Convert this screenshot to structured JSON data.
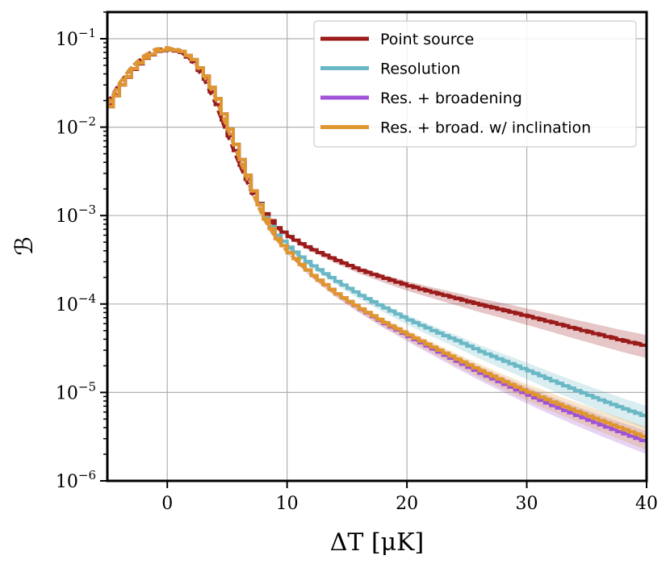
{
  "chart_data": {
    "type": "line",
    "xlabel": "ΔT [μK]",
    "ylabel": "ℬ",
    "yscale": "log",
    "xlim": [
      -5,
      40
    ],
    "ylim": [
      1e-06,
      0.2
    ],
    "grid": true,
    "legend_position": "top-right",
    "x_ticks": [
      0,
      10,
      20,
      30,
      40
    ],
    "x_tick_labels": [
      "0",
      "10",
      "20",
      "30",
      "40"
    ],
    "y_ticks": [
      1e-06,
      1e-05,
      0.0001,
      0.001,
      0.01,
      0.1
    ],
    "y_tick_labels": [
      "10−6",
      "10−5",
      "10−4",
      "10−3",
      "10−2",
      "10−1"
    ],
    "series": [
      {
        "name": "Point source",
        "color": "#9b1b1b",
        "x": [
          -5,
          -4,
          -3,
          -2,
          -1,
          0,
          1,
          2,
          3,
          4,
          5,
          6,
          7,
          8,
          9,
          10,
          11,
          12,
          14,
          16,
          18,
          20,
          22,
          24,
          26,
          28,
          30,
          32,
          34,
          36,
          38,
          40
        ],
        "y": [
          0.018,
          0.03,
          0.045,
          0.06,
          0.072,
          0.075,
          0.07,
          0.055,
          0.035,
          0.018,
          0.008,
          0.0037,
          0.0018,
          0.00105,
          0.00073,
          0.00058,
          0.00048,
          0.00041,
          0.00031,
          0.00024,
          0.000195,
          0.00016,
          0.000135,
          0.000115,
          9.75e-05,
          8.4e-05,
          7.2e-05,
          6.15e-05,
          5.2e-05,
          4.45e-05,
          3.8e-05,
          3.3e-05
        ]
      },
      {
        "name": "Resolution",
        "color": "#6ab8c6",
        "x": [
          -5,
          -4,
          -3,
          -2,
          -1,
          0,
          1,
          2,
          3,
          4,
          5,
          6,
          7,
          8,
          9,
          10,
          11,
          12,
          14,
          16,
          18,
          20,
          22,
          24,
          26,
          28,
          30,
          32,
          34,
          36,
          38,
          40
        ],
        "y": [
          0.017,
          0.03,
          0.046,
          0.061,
          0.073,
          0.076,
          0.072,
          0.058,
          0.038,
          0.021,
          0.0095,
          0.0043,
          0.0019,
          0.00095,
          0.0006,
          0.00044,
          0.00034,
          0.00027,
          0.00018,
          0.000125,
          9e-05,
          6.6e-05,
          5e-05,
          3.85e-05,
          2.9e-05,
          2.25e-05,
          1.75e-05,
          1.35e-05,
          1.05e-05,
          8.2e-06,
          6.5e-06,
          5.2e-06
        ]
      },
      {
        "name": "Res. + broadening",
        "color": "#9f52d8",
        "x": [
          -5,
          -4,
          -3,
          -2,
          -1,
          0,
          1,
          2,
          3,
          4,
          5,
          6,
          7,
          8,
          9,
          10,
          11,
          12,
          14,
          16,
          18,
          20,
          22,
          24,
          26,
          28,
          30,
          32,
          34,
          36,
          38,
          40
        ],
        "y": [
          0.017,
          0.03,
          0.046,
          0.061,
          0.073,
          0.076,
          0.072,
          0.058,
          0.038,
          0.021,
          0.0095,
          0.0043,
          0.0019,
          0.00092,
          0.00055,
          0.00038,
          0.00028,
          0.00021,
          0.00013,
          8.7e-05,
          6e-05,
          4.3e-05,
          3.1e-05,
          2.25e-05,
          1.65e-05,
          1.23e-05,
          9.3e-06,
          7.1e-06,
          5.5e-06,
          4.3e-06,
          3.4e-06,
          2.7e-06
        ]
      },
      {
        "name": "Res. + broad. w/ inclination",
        "color": "#e0962e",
        "x": [
          -5,
          -4,
          -3,
          -2,
          -1,
          0,
          1,
          2,
          3,
          4,
          5,
          6,
          7,
          8,
          9,
          10,
          11,
          12,
          14,
          16,
          18,
          20,
          22,
          24,
          26,
          28,
          30,
          32,
          34,
          36,
          38,
          40
        ],
        "y": [
          0.017,
          0.03,
          0.046,
          0.061,
          0.073,
          0.076,
          0.072,
          0.058,
          0.038,
          0.021,
          0.0095,
          0.0043,
          0.0019,
          0.00092,
          0.00055,
          0.00038,
          0.00028,
          0.00021,
          0.00013,
          8.8e-05,
          6.15e-05,
          4.45e-05,
          3.25e-05,
          2.38e-05,
          1.76e-05,
          1.32e-05,
          1e-05,
          7.8e-06,
          6.1e-06,
          4.8e-06,
          3.8e-06,
          3e-06
        ]
      }
    ]
  }
}
